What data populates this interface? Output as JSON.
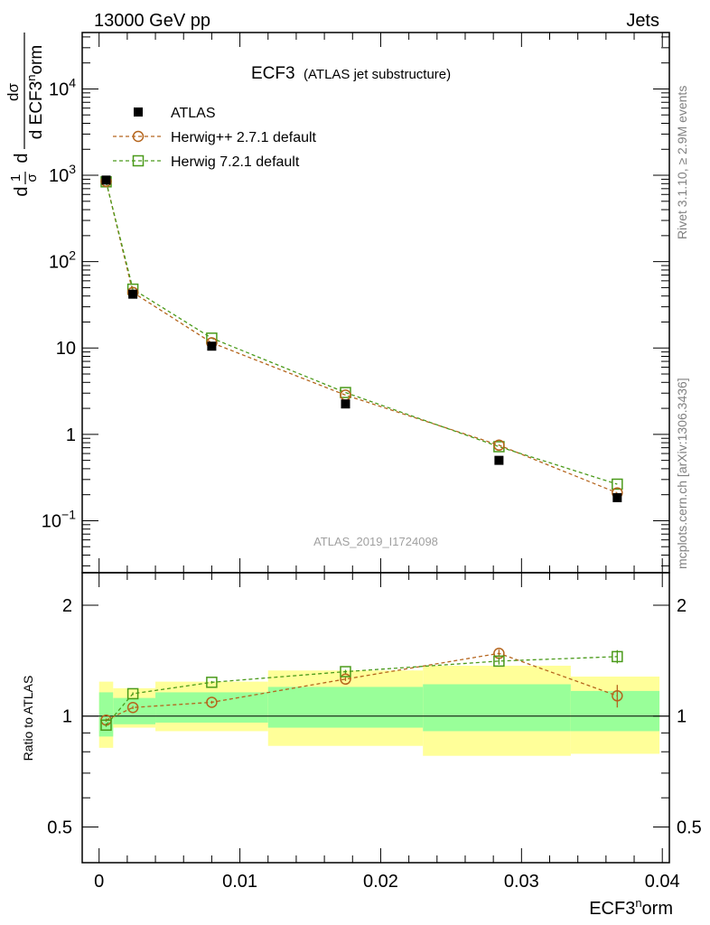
{
  "header": {
    "left": "13000 GeV pp",
    "right": "Jets"
  },
  "title": {
    "main": "ECF3",
    "sub": "(ATLAS jet substructure)"
  },
  "analysis_id": "ATLAS_2019_I1724098",
  "side_text": {
    "rivet": "Rivet 3.1.10, ≥ 2.9M events",
    "mcplots": "mcplots.cern.ch [arXiv:1306.3436]"
  },
  "labels": {
    "ylabel_main": "1/σ dσ/d ECF3^norm",
    "ylabel_ratio": "Ratio to ATLAS",
    "xlabel_base": "ECF3",
    "xlabel_sup": "n",
    "xlabel_tail": "orm"
  },
  "legend": [
    {
      "name": "ATLAS",
      "marker": "filled-square",
      "color": "#000000"
    },
    {
      "name": "Herwig++ 2.7.1 default",
      "marker": "open-circle",
      "color": "#b5651d"
    },
    {
      "name": "Herwig 7.2.1 default",
      "marker": "open-square",
      "color": "#4a9a1a"
    }
  ],
  "chart_data": [
    {
      "type": "scatter",
      "panel": "main",
      "ylog": true,
      "xlim": [
        -0.0012,
        0.0405
      ],
      "ylim": [
        0.025,
        45000
      ],
      "yticks": [
        {
          "v": 0.1,
          "base": "10",
          "exp": "−1"
        },
        {
          "v": 1,
          "base": "1",
          "exp": ""
        },
        {
          "v": 10,
          "base": "10",
          "exp": ""
        },
        {
          "v": 100,
          "base": "10",
          "exp": "2"
        },
        {
          "v": 1000,
          "base": "10",
          "exp": "3"
        },
        {
          "v": 10000,
          "base": "10",
          "exp": "4"
        }
      ],
      "series": [
        {
          "name": "ATLAS",
          "x": [
            0.0005,
            0.0024,
            0.008,
            0.0175,
            0.0284,
            0.0368
          ],
          "y": [
            880,
            42,
            10.5,
            2.25,
            0.5,
            0.185
          ]
        },
        {
          "name": "Herwig++ 2.7.1 default",
          "x": [
            0.0005,
            0.0024,
            0.008,
            0.0175,
            0.0284,
            0.0368
          ],
          "y": [
            850,
            44,
            11.5,
            2.85,
            0.75,
            0.21
          ]
        },
        {
          "name": "Herwig 7.2.1 default",
          "x": [
            0.0005,
            0.0024,
            0.008,
            0.0175,
            0.0284,
            0.0368
          ],
          "y": [
            840,
            48,
            13,
            3.05,
            0.72,
            0.265
          ]
        }
      ]
    },
    {
      "type": "scatter",
      "panel": "ratio",
      "ylog": true,
      "xlim": [
        -0.0012,
        0.0405
      ],
      "ylim": [
        0.4,
        2.45
      ],
      "xticks": [
        0,
        0.01,
        0.02,
        0.03,
        0.04
      ],
      "xtick_labels": [
        "0",
        "0.01",
        "0.02",
        "0.03",
        "0.04"
      ],
      "yticks": [
        0.5,
        1,
        2
      ],
      "ytick_labels": [
        "0.5",
        "1",
        "2"
      ],
      "bands": [
        {
          "x0": 0.0,
          "x1": 0.001,
          "inner": [
            0.88,
            1.16
          ],
          "outer": [
            0.82,
            1.24
          ]
        },
        {
          "x0": 0.001,
          "x1": 0.004,
          "inner": [
            0.95,
            1.12
          ],
          "outer": [
            0.93,
            1.19
          ]
        },
        {
          "x0": 0.004,
          "x1": 0.012,
          "inner": [
            0.96,
            1.16
          ],
          "outer": [
            0.91,
            1.24
          ]
        },
        {
          "x0": 0.012,
          "x1": 0.023,
          "inner": [
            0.93,
            1.2
          ],
          "outer": [
            0.83,
            1.33
          ]
        },
        {
          "x0": 0.023,
          "x1": 0.0335,
          "inner": [
            0.91,
            1.22
          ],
          "outer": [
            0.78,
            1.37
          ]
        },
        {
          "x0": 0.0335,
          "x1": 0.0398,
          "inner": [
            0.91,
            1.17
          ],
          "outer": [
            0.79,
            1.28
          ]
        }
      ],
      "series": [
        {
          "name": "Herwig++ 2.7.1 default",
          "x": [
            0.0005,
            0.0024,
            0.008,
            0.0175,
            0.0284,
            0.0368
          ],
          "y": [
            0.975,
            1.055,
            1.09,
            1.26,
            1.48,
            1.135
          ],
          "yerr": [
            0.01,
            0.01,
            0.01,
            0.015,
            0.035,
            0.08
          ]
        },
        {
          "name": "Herwig 7.2.1 default",
          "x": [
            0.0005,
            0.0024,
            0.008,
            0.0175,
            0.0284,
            0.0368
          ],
          "y": [
            0.945,
            1.15,
            1.235,
            1.32,
            1.41,
            1.45
          ],
          "yerr": [
            0.01,
            0.01,
            0.01,
            0.015,
            0.03,
            0.06
          ]
        }
      ]
    }
  ]
}
